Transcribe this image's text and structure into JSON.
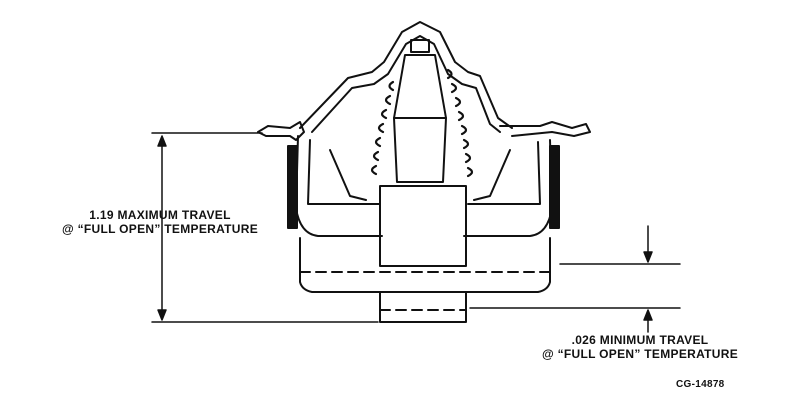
{
  "labels": {
    "max_travel_line1": "1.19 MAXIMUM TRAVEL",
    "max_travel_line2": "@ “FULL OPEN” TEMPERATURE",
    "min_travel_line1": ".026 MINIMUM TRAVEL",
    "min_travel_line2": "@ “FULL OPEN” TEMPERATURE",
    "figure_code": "CG-14878"
  },
  "colors": {
    "line": "#111111",
    "background": "#ffffff"
  }
}
